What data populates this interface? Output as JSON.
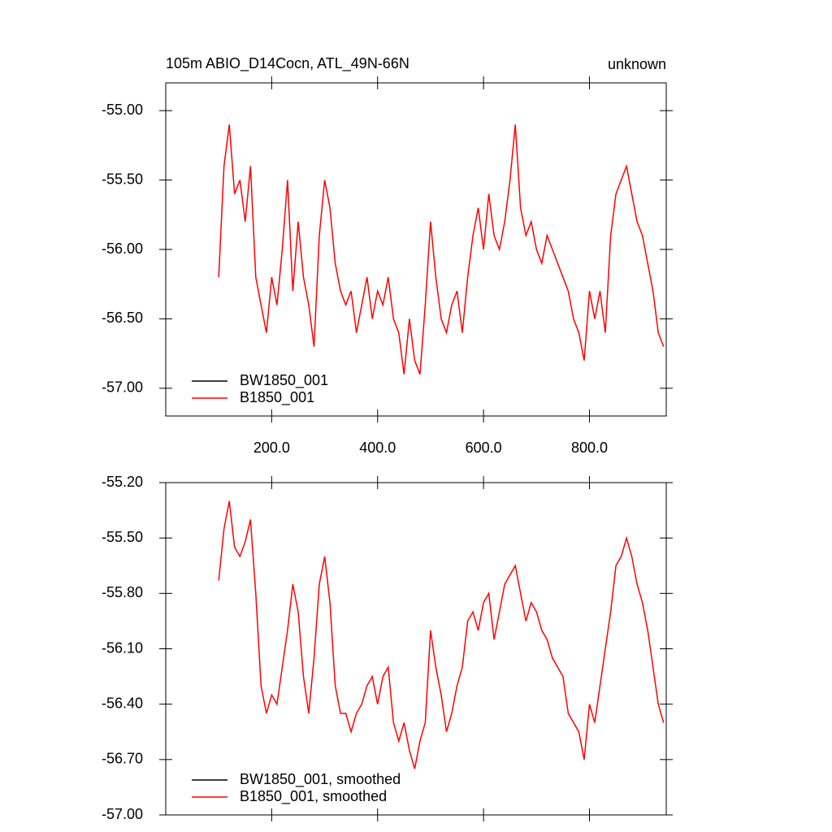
{
  "chart_data": [
    {
      "type": "line",
      "title": "105m ABIO_D14Cocn, ATL_49N-66N",
      "subtitle": "unknown",
      "x": [
        100,
        110,
        120,
        130,
        140,
        150,
        160,
        170,
        180,
        190,
        200,
        210,
        220,
        230,
        240,
        250,
        260,
        270,
        280,
        290,
        300,
        310,
        320,
        330,
        340,
        350,
        360,
        370,
        380,
        390,
        400,
        410,
        420,
        430,
        440,
        450,
        460,
        470,
        480,
        490,
        500,
        510,
        520,
        530,
        540,
        550,
        560,
        570,
        580,
        590,
        600,
        610,
        620,
        630,
        640,
        650,
        660,
        670,
        680,
        690,
        700,
        710,
        720,
        730,
        740,
        750,
        760,
        770,
        780,
        790,
        800,
        810,
        820,
        830,
        840,
        850,
        860,
        870,
        880,
        890,
        900,
        910,
        920,
        930,
        940
      ],
      "series": [
        {
          "name": "BW1850_001",
          "color": "#000000",
          "values": [
            null,
            null,
            null,
            null,
            null,
            null,
            null,
            null,
            null,
            null,
            null,
            null,
            null,
            null,
            null,
            null,
            null,
            null,
            null,
            null,
            null,
            null,
            null,
            null,
            null,
            null,
            null,
            null,
            null,
            null,
            null,
            null,
            null,
            null,
            null,
            null,
            null,
            null,
            null,
            null,
            null,
            null,
            null,
            null,
            null,
            null,
            null,
            null,
            null,
            null,
            null,
            null,
            null,
            null,
            null,
            null,
            null,
            null,
            null,
            null,
            null,
            null,
            null,
            null,
            null,
            null,
            null,
            null,
            null,
            null,
            null,
            null,
            null,
            null,
            null,
            null,
            null,
            null,
            null,
            null,
            null,
            null,
            null,
            null,
            null
          ]
        },
        {
          "name": "B1850_001",
          "color": "#ff0000",
          "values": [
            -56.2,
            -55.4,
            -55.1,
            -55.6,
            -55.5,
            -55.8,
            -55.4,
            -56.2,
            -56.4,
            -56.6,
            -56.2,
            -56.4,
            -56.0,
            -55.5,
            -56.3,
            -55.8,
            -56.2,
            -56.4,
            -56.7,
            -55.9,
            -55.5,
            -55.7,
            -56.1,
            -56.3,
            -56.4,
            -56.3,
            -56.6,
            -56.4,
            -56.2,
            -56.5,
            -56.3,
            -56.4,
            -56.2,
            -56.5,
            -56.6,
            -56.9,
            -56.5,
            -56.8,
            -56.9,
            -56.4,
            -55.8,
            -56.2,
            -56.5,
            -56.6,
            -56.4,
            -56.3,
            -56.6,
            -56.2,
            -55.9,
            -55.7,
            -56.0,
            -55.6,
            -55.9,
            -56.0,
            -55.8,
            -55.5,
            -55.1,
            -55.7,
            -55.9,
            -55.8,
            -56.0,
            -56.1,
            -55.9,
            -56.0,
            -56.1,
            -56.2,
            -56.3,
            -56.5,
            -56.6,
            -56.8,
            -56.3,
            -56.5,
            -56.3,
            -56.6,
            -55.9,
            -55.6,
            -55.5,
            -55.4,
            -55.6,
            -55.8,
            -55.9,
            -56.1,
            -56.3,
            -56.6,
            -56.7
          ]
        }
      ],
      "xlim": [
        0,
        945
      ],
      "xticks": [
        {
          "value": 200,
          "label": "200.0"
        },
        {
          "value": 400,
          "label": "400.0"
        },
        {
          "value": 600,
          "label": "600.0"
        },
        {
          "value": 800,
          "label": "800.0"
        }
      ],
      "ylim": [
        -57.2,
        -54.8
      ],
      "yticks": [
        {
          "value": -57,
          "label": "-57.00"
        },
        {
          "value": -56.5,
          "label": "-56.50"
        },
        {
          "value": -56,
          "label": "-56.00"
        },
        {
          "value": -55.5,
          "label": "-55.50"
        },
        {
          "value": -55,
          "label": "-55.00"
        }
      ],
      "legend": "lower left"
    },
    {
      "type": "line",
      "x": [
        100,
        110,
        120,
        130,
        140,
        150,
        160,
        170,
        180,
        190,
        200,
        210,
        220,
        230,
        240,
        250,
        260,
        270,
        280,
        290,
        300,
        310,
        320,
        330,
        340,
        350,
        360,
        370,
        380,
        390,
        400,
        410,
        420,
        430,
        440,
        450,
        460,
        470,
        480,
        490,
        500,
        510,
        520,
        530,
        540,
        550,
        560,
        570,
        580,
        590,
        600,
        610,
        620,
        630,
        640,
        650,
        660,
        670,
        680,
        690,
        700,
        710,
        720,
        730,
        740,
        750,
        760,
        770,
        780,
        790,
        800,
        810,
        820,
        830,
        840,
        850,
        860,
        870,
        880,
        890,
        900,
        910,
        920,
        930,
        940
      ],
      "series": [
        {
          "name": "BW1850_001, smoothed",
          "color": "#000000",
          "values": [
            null,
            null,
            null,
            null,
            null,
            null,
            null,
            null,
            null,
            null,
            null,
            null,
            null,
            null,
            null,
            null,
            null,
            null,
            null,
            null,
            null,
            null,
            null,
            null,
            null,
            null,
            null,
            null,
            null,
            null,
            null,
            null,
            null,
            null,
            null,
            null,
            null,
            null,
            null,
            null,
            null,
            null,
            null,
            null,
            null,
            null,
            null,
            null,
            null,
            null,
            null,
            null,
            null,
            null,
            null,
            null,
            null,
            null,
            null,
            null,
            null,
            null,
            null,
            null,
            null,
            null,
            null,
            null,
            null,
            null,
            null,
            null,
            null,
            null,
            null,
            null,
            null,
            null,
            null,
            null,
            null,
            null,
            null,
            null,
            null
          ]
        },
        {
          "name": "B1850_001, smoothed",
          "color": "#ff0000",
          "values": [
            -55.73,
            -55.45,
            -55.3,
            -55.55,
            -55.6,
            -55.52,
            -55.4,
            -55.8,
            -56.3,
            -56.45,
            -56.35,
            -56.4,
            -56.2,
            -56.0,
            -55.75,
            -55.9,
            -56.25,
            -56.45,
            -56.15,
            -55.75,
            -55.6,
            -55.85,
            -56.3,
            -56.45,
            -56.45,
            -56.55,
            -56.45,
            -56.4,
            -56.3,
            -56.25,
            -56.4,
            -56.25,
            -56.2,
            -56.5,
            -56.6,
            -56.5,
            -56.65,
            -56.75,
            -56.6,
            -56.5,
            -56.0,
            -56.2,
            -56.35,
            -56.55,
            -56.45,
            -56.3,
            -56.2,
            -55.95,
            -55.9,
            -56.0,
            -55.85,
            -55.8,
            -56.05,
            -55.9,
            -55.75,
            -55.7,
            -55.65,
            -55.8,
            -55.95,
            -55.85,
            -55.9,
            -56.0,
            -56.05,
            -56.15,
            -56.2,
            -56.25,
            -56.45,
            -56.5,
            -56.55,
            -56.7,
            -56.4,
            -56.5,
            -56.3,
            -56.1,
            -55.9,
            -55.65,
            -55.6,
            -55.5,
            -55.6,
            -55.75,
            -55.85,
            -56.0,
            -56.2,
            -56.4,
            -56.5
          ]
        }
      ],
      "xlim": [
        0,
        945
      ],
      "xticks": [
        200,
        400,
        600,
        800
      ],
      "ylim": [
        -57.0,
        -55.2
      ],
      "yticks": [
        {
          "value": -57,
          "label": "-57.00"
        },
        {
          "value": -56.7,
          "label": "-56.70"
        },
        {
          "value": -56.4,
          "label": "-56.40"
        },
        {
          "value": -56.1,
          "label": "-56.10"
        },
        {
          "value": -55.8,
          "label": "-55.80"
        },
        {
          "value": -55.5,
          "label": "-55.50"
        },
        {
          "value": -55.2,
          "label": "-55.20"
        }
      ],
      "legend": "lower left"
    }
  ]
}
